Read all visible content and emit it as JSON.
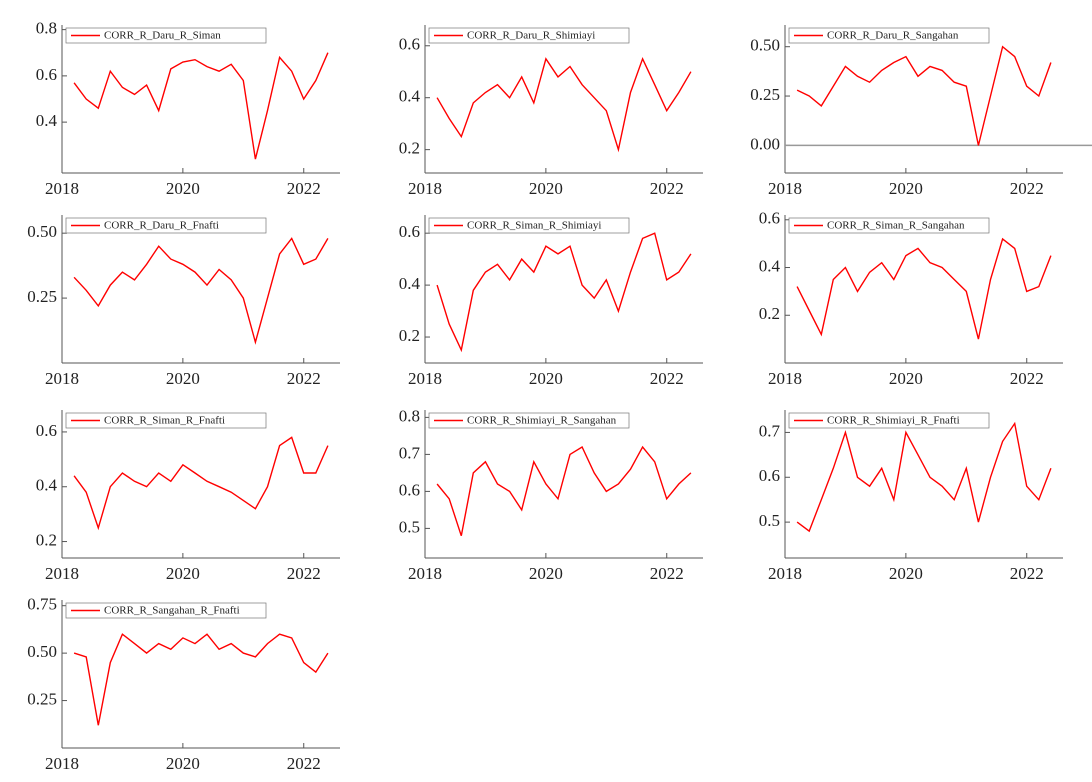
{
  "chart_data": [
    {
      "type": "line",
      "x": [
        2018.2,
        2018.4,
        2018.6,
        2018.8,
        2019.0,
        2019.2,
        2019.4,
        2019.6,
        2019.8,
        2020.0,
        2020.2,
        2020.4,
        2020.6,
        2020.8,
        2021.0,
        2021.2,
        2021.4,
        2021.6,
        2021.8,
        2022.0,
        2022.2,
        2022.4
      ],
      "xlim": [
        2018,
        2022.6
      ],
      "xticks": [
        2018,
        2020,
        2022
      ],
      "ylim": [
        0.18,
        0.82
      ],
      "yticks": [
        0.4,
        0.6,
        0.8
      ],
      "series": [
        {
          "name": "CORR_R_Daru_R_Siman",
          "color": "#ff0000",
          "values": [
            0.57,
            0.5,
            0.46,
            0.62,
            0.55,
            0.52,
            0.56,
            0.45,
            0.63,
            0.66,
            0.67,
            0.64,
            0.62,
            0.65,
            0.58,
            0.24,
            0.45,
            0.68,
            0.62,
            0.5,
            0.58,
            0.7
          ]
        }
      ]
    },
    {
      "type": "line",
      "x": [
        2018.2,
        2018.4,
        2018.6,
        2018.8,
        2019.0,
        2019.2,
        2019.4,
        2019.6,
        2019.8,
        2020.0,
        2020.2,
        2020.4,
        2020.6,
        2020.8,
        2021.0,
        2021.2,
        2021.4,
        2021.6,
        2021.8,
        2022.0,
        2022.2,
        2022.4
      ],
      "xlim": [
        2018,
        2022.6
      ],
      "xticks": [
        2018,
        2020,
        2022
      ],
      "ylim": [
        0.11,
        0.68
      ],
      "yticks": [
        0.2,
        0.4,
        0.6
      ],
      "series": [
        {
          "name": "CORR_R_Daru_R_Shimiayi",
          "color": "#ff0000",
          "values": [
            0.4,
            0.32,
            0.25,
            0.38,
            0.42,
            0.45,
            0.4,
            0.48,
            0.38,
            0.55,
            0.48,
            0.52,
            0.45,
            0.4,
            0.35,
            0.2,
            0.42,
            0.55,
            0.45,
            0.35,
            0.42,
            0.5
          ]
        }
      ]
    },
    {
      "type": "line",
      "x": [
        2018.2,
        2018.4,
        2018.6,
        2018.8,
        2019.0,
        2019.2,
        2019.4,
        2019.6,
        2019.8,
        2020.0,
        2020.2,
        2020.4,
        2020.6,
        2020.8,
        2021.0,
        2021.2,
        2021.4,
        2021.6,
        2021.8,
        2022.0,
        2022.2,
        2022.4
      ],
      "xlim": [
        2018,
        2022.6
      ],
      "xticks": [
        2018,
        2020,
        2022
      ],
      "ylim": [
        -0.14,
        0.61
      ],
      "yticks": [
        {
          "value": 0.5,
          "label": "0.50"
        },
        0.25,
        {
          "value": 0,
          "label": "0.00"
        }
      ],
      "reference_line": 0,
      "series": [
        {
          "name": "CORR_R_Daru_R_Sangahan",
          "color": "#ff0000",
          "values": [
            0.28,
            0.25,
            0.2,
            0.3,
            0.4,
            0.35,
            0.32,
            0.38,
            0.42,
            0.45,
            0.35,
            0.4,
            0.38,
            0.32,
            0.3,
            0.0,
            0.25,
            0.5,
            0.45,
            0.3,
            0.25,
            0.42
          ]
        }
      ]
    },
    {
      "type": "line",
      "x": [
        2018.2,
        2018.4,
        2018.6,
        2018.8,
        2019.0,
        2019.2,
        2019.4,
        2019.6,
        2019.8,
        2020.0,
        2020.2,
        2020.4,
        2020.6,
        2020.8,
        2021.0,
        2021.2,
        2021.4,
        2021.6,
        2021.8,
        2022.0,
        2022.2,
        2022.4
      ],
      "xlim": [
        2018,
        2022.6
      ],
      "xticks": [
        2018,
        2020,
        2022
      ],
      "ylim": [
        0.0,
        0.57
      ],
      "yticks": [
        {
          "value": 0.5,
          "label": "0.50"
        },
        0.25
      ],
      "series": [
        {
          "name": "CORR_R_Daru_R_Fnafti",
          "color": "#ff0000",
          "values": [
            0.33,
            0.28,
            0.22,
            0.3,
            0.35,
            0.32,
            0.38,
            0.45,
            0.4,
            0.38,
            0.35,
            0.3,
            0.36,
            0.32,
            0.25,
            0.08,
            0.25,
            0.42,
            0.48,
            0.38,
            0.4,
            0.48
          ]
        }
      ]
    },
    {
      "type": "line",
      "x": [
        2018.2,
        2018.4,
        2018.6,
        2018.8,
        2019.0,
        2019.2,
        2019.4,
        2019.6,
        2019.8,
        2020.0,
        2020.2,
        2020.4,
        2020.6,
        2020.8,
        2021.0,
        2021.2,
        2021.4,
        2021.6,
        2021.8,
        2022.0,
        2022.2,
        2022.4
      ],
      "xlim": [
        2018,
        2022.6
      ],
      "xticks": [
        2018,
        2020,
        2022
      ],
      "ylim": [
        0.1,
        0.67
      ],
      "yticks": [
        0.2,
        0.4,
        0.6
      ],
      "series": [
        {
          "name": "CORR_R_Siman_R_Shimiayi",
          "color": "#ff0000",
          "values": [
            0.4,
            0.25,
            0.15,
            0.38,
            0.45,
            0.48,
            0.42,
            0.5,
            0.45,
            0.55,
            0.52,
            0.55,
            0.4,
            0.35,
            0.42,
            0.3,
            0.45,
            0.58,
            0.6,
            0.42,
            0.45,
            0.52
          ]
        }
      ]
    },
    {
      "type": "line",
      "x": [
        2018.2,
        2018.4,
        2018.6,
        2018.8,
        2019.0,
        2019.2,
        2019.4,
        2019.6,
        2019.8,
        2020.0,
        2020.2,
        2020.4,
        2020.6,
        2020.8,
        2021.0,
        2021.2,
        2021.4,
        2021.6,
        2021.8,
        2022.0,
        2022.2,
        2022.4
      ],
      "xlim": [
        2018,
        2022.6
      ],
      "xticks": [
        2018,
        2020,
        2022
      ],
      "ylim": [
        0.0,
        0.62
      ],
      "yticks": [
        0.2,
        0.4,
        0.6
      ],
      "series": [
        {
          "name": "CORR_R_Siman_R_Sangahan",
          "color": "#ff0000",
          "values": [
            0.32,
            0.22,
            0.12,
            0.35,
            0.4,
            0.3,
            0.38,
            0.42,
            0.35,
            0.45,
            0.48,
            0.42,
            0.4,
            0.35,
            0.3,
            0.1,
            0.35,
            0.52,
            0.48,
            0.3,
            0.32,
            0.45
          ]
        }
      ]
    },
    {
      "type": "line",
      "x": [
        2018.2,
        2018.4,
        2018.6,
        2018.8,
        2019.0,
        2019.2,
        2019.4,
        2019.6,
        2019.8,
        2020.0,
        2020.2,
        2020.4,
        2020.6,
        2020.8,
        2021.0,
        2021.2,
        2021.4,
        2021.6,
        2021.8,
        2022.0,
        2022.2,
        2022.4
      ],
      "xlim": [
        2018,
        2022.6
      ],
      "xticks": [
        2018,
        2020,
        2022
      ],
      "ylim": [
        0.14,
        0.68
      ],
      "yticks": [
        0.2,
        0.4,
        0.6
      ],
      "series": [
        {
          "name": "CORR_R_Siman_R_Fnafti",
          "color": "#ff0000",
          "values": [
            0.44,
            0.38,
            0.25,
            0.4,
            0.45,
            0.42,
            0.4,
            0.45,
            0.42,
            0.48,
            0.45,
            0.42,
            0.4,
            0.38,
            0.35,
            0.32,
            0.4,
            0.55,
            0.58,
            0.45,
            0.45,
            0.55
          ]
        }
      ]
    },
    {
      "type": "line",
      "x": [
        2018.2,
        2018.4,
        2018.6,
        2018.8,
        2019.0,
        2019.2,
        2019.4,
        2019.6,
        2019.8,
        2020.0,
        2020.2,
        2020.4,
        2020.6,
        2020.8,
        2021.0,
        2021.2,
        2021.4,
        2021.6,
        2021.8,
        2022.0,
        2022.2,
        2022.4
      ],
      "xlim": [
        2018,
        2022.6
      ],
      "xticks": [
        2018,
        2020,
        2022
      ],
      "ylim": [
        0.42,
        0.82
      ],
      "yticks": [
        0.5,
        0.6,
        0.7,
        0.8
      ],
      "series": [
        {
          "name": "CORR_R_Shimiayi_R_Sangahan",
          "color": "#ff0000",
          "values": [
            0.62,
            0.58,
            0.48,
            0.65,
            0.68,
            0.62,
            0.6,
            0.55,
            0.68,
            0.62,
            0.58,
            0.7,
            0.72,
            0.65,
            0.6,
            0.62,
            0.66,
            0.72,
            0.68,
            0.58,
            0.62,
            0.65
          ]
        }
      ]
    },
    {
      "type": "line",
      "x": [
        2018.2,
        2018.4,
        2018.6,
        2018.8,
        2019.0,
        2019.2,
        2019.4,
        2019.6,
        2019.8,
        2020.0,
        2020.2,
        2020.4,
        2020.6,
        2020.8,
        2021.0,
        2021.2,
        2021.4,
        2021.6,
        2021.8,
        2022.0,
        2022.2,
        2022.4
      ],
      "xlim": [
        2018,
        2022.6
      ],
      "xticks": [
        2018,
        2020,
        2022
      ],
      "ylim": [
        0.42,
        0.75
      ],
      "yticks": [
        0.5,
        0.6,
        0.7
      ],
      "series": [
        {
          "name": "CORR_R_Shimiayi_R_Fnafti",
          "color": "#ff0000",
          "values": [
            0.5,
            0.48,
            0.55,
            0.62,
            0.7,
            0.6,
            0.58,
            0.62,
            0.55,
            0.7,
            0.65,
            0.6,
            0.58,
            0.55,
            0.62,
            0.5,
            0.6,
            0.68,
            0.72,
            0.58,
            0.55,
            0.62
          ]
        }
      ]
    },
    {
      "type": "line",
      "x": [
        2018.2,
        2018.4,
        2018.6,
        2018.8,
        2019.0,
        2019.2,
        2019.4,
        2019.6,
        2019.8,
        2020.0,
        2020.2,
        2020.4,
        2020.6,
        2020.8,
        2021.0,
        2021.2,
        2021.4,
        2021.6,
        2021.8,
        2022.0,
        2022.2,
        2022.4
      ],
      "xlim": [
        2018,
        2022.6
      ],
      "xticks": [
        2018,
        2020,
        2022
      ],
      "ylim": [
        0.0,
        0.78
      ],
      "yticks": [
        {
          "value": 0.75,
          "label": "0.75"
        },
        {
          "value": 0.5,
          "label": "0.50"
        },
        0.25
      ],
      "series": [
        {
          "name": "CORR_R_Sangahan_R_Fnafti",
          "color": "#ff0000",
          "values": [
            0.5,
            0.48,
            0.12,
            0.45,
            0.6,
            0.55,
            0.5,
            0.55,
            0.52,
            0.58,
            0.55,
            0.6,
            0.52,
            0.55,
            0.5,
            0.48,
            0.55,
            0.6,
            0.58,
            0.45,
            0.4,
            0.5
          ]
        }
      ]
    }
  ]
}
